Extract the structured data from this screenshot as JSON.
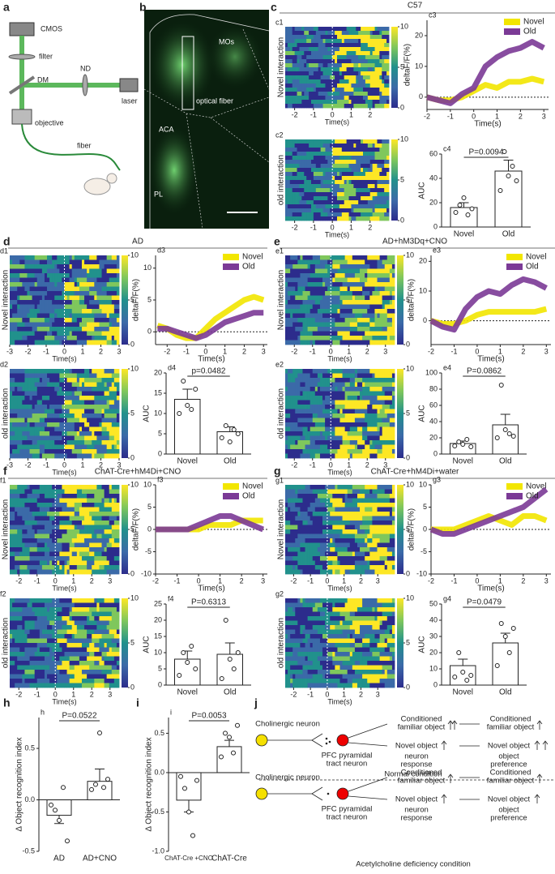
{
  "panel_letters": [
    "a",
    "b",
    "c",
    "d",
    "e",
    "f",
    "g",
    "h",
    "i",
    "j"
  ],
  "schematic": {
    "labels": [
      "CMOS",
      "filter",
      "DM",
      "ND",
      "laser",
      "objective",
      "fiber"
    ]
  },
  "micrograph": {
    "labels": [
      "MOs",
      "optical fiber",
      "ACA",
      "PL"
    ]
  },
  "sections": [
    "C57",
    "AD",
    "AD+hM3Dq+CNO",
    "ChAT-Cre+hM4Di+CNO",
    "ChAT-Cre+hM4Di+water"
  ],
  "heatmaps": [
    {
      "label": "c1",
      "ylabel": "Novel interaction",
      "xlabel": "Time(s)",
      "xlim": [
        -2.5,
        3
      ],
      "xticks": [
        -2,
        -1,
        0,
        1,
        2
      ],
      "clim": [
        0,
        10
      ],
      "cticks": [
        0,
        5,
        10
      ]
    },
    {
      "label": "c2",
      "ylabel": "old interaction",
      "xlabel": "Time(s)",
      "xlim": [
        -2.5,
        3
      ],
      "xticks": [
        -2,
        -1,
        0,
        1,
        2
      ],
      "clim": [
        0,
        10
      ],
      "cticks": [
        0,
        5,
        10
      ]
    },
    {
      "label": "d1",
      "ylabel": "Novel interaction",
      "xlabel": "Time(s)",
      "xlim": [
        -3,
        3
      ],
      "xticks": [
        -3,
        -2,
        -1,
        0,
        1,
        2,
        3
      ],
      "clim": [
        0,
        10
      ],
      "cticks": [
        0,
        5,
        10
      ]
    },
    {
      "label": "d2",
      "ylabel": "old interaction",
      "xlabel": "Time(s)",
      "xlim": [
        -3,
        3
      ],
      "xticks": [
        -3,
        -2,
        -1,
        0,
        1,
        2,
        3
      ],
      "clim": [
        0,
        10
      ],
      "cticks": [
        0,
        5,
        10
      ]
    },
    {
      "label": "e1",
      "ylabel": "Novel interaction",
      "xlabel": "Time(s)",
      "xlim": [
        -2.5,
        3.5
      ],
      "xticks": [
        -2,
        -1,
        0,
        1,
        2,
        3
      ],
      "clim": [
        0,
        10
      ],
      "cticks": [
        0,
        5,
        10
      ]
    },
    {
      "label": "e2",
      "ylabel": "old interaction",
      "xlabel": "Time(s)",
      "xlim": [
        -2.5,
        3.5
      ],
      "xticks": [
        -2,
        -1,
        0,
        1,
        2,
        3
      ],
      "clim": [
        0,
        10
      ],
      "cticks": [
        0,
        5,
        10
      ]
    },
    {
      "label": "f1",
      "ylabel": "Novel interaction",
      "xlabel": "Time(s)",
      "xlim": [
        -2.5,
        3.5
      ],
      "xticks": [
        -2,
        -1,
        0,
        1,
        2,
        3
      ],
      "clim": [
        0,
        10
      ],
      "cticks": [
        0,
        5,
        10
      ]
    },
    {
      "label": "f2",
      "ylabel": "old interaction",
      "xlabel": "Time(s)",
      "xlim": [
        -2.5,
        3.5
      ],
      "xticks": [
        -2,
        -1,
        0,
        1,
        2,
        3
      ],
      "clim": [
        0,
        10
      ],
      "cticks": [
        0,
        5,
        10
      ]
    },
    {
      "label": "g1",
      "ylabel": "Novel interaction",
      "xlabel": "Time(s)",
      "xlim": [
        -2.5,
        4
      ],
      "xticks": [
        -2,
        -1,
        0,
        1,
        2,
        3
      ],
      "clim": [
        0,
        10
      ],
      "cticks": [
        0,
        5,
        10
      ]
    },
    {
      "label": "g2",
      "ylabel": "old interaction",
      "xlabel": "Time(s)",
      "xlim": [
        -2.5,
        4
      ],
      "xticks": [
        -2,
        -1,
        0,
        1,
        2,
        3
      ],
      "clim": [
        0,
        10
      ],
      "cticks": [
        0,
        5,
        10
      ]
    }
  ],
  "chart_data": [
    {
      "type": "line",
      "label": "c3",
      "ylabel": "deltaF/F(%)",
      "xlabel": "Time(s)",
      "xlim": [
        -2,
        3.2
      ],
      "xticks": [
        -2,
        -1,
        0,
        1,
        2,
        3
      ],
      "ylim": [
        -4,
        25
      ],
      "yticks": [
        0,
        10,
        20
      ],
      "x": [
        -2,
        -1.5,
        -1,
        -0.5,
        0,
        0.5,
        1,
        1.5,
        2,
        2.5,
        3
      ],
      "series": [
        {
          "name": "Novel",
          "color": "#f2e600",
          "values": [
            0,
            -1,
            -1,
            0,
            2,
            4,
            3,
            5,
            5,
            6,
            5
          ]
        },
        {
          "name": "Old",
          "color": "#7b3a96",
          "values": [
            0,
            -1,
            -2,
            1,
            3,
            10,
            13,
            15,
            16,
            18,
            16
          ]
        }
      ]
    },
    {
      "type": "bar",
      "label": "c4",
      "ylabel": "AUC",
      "categories": [
        "Novel",
        "Old"
      ],
      "values": [
        16,
        46
      ],
      "errors": [
        4,
        9
      ],
      "points": [
        [
          12,
          18,
          24,
          10,
          15
        ],
        [
          30,
          62,
          42,
          50,
          38
        ]
      ],
      "ylim": [
        0,
        60
      ],
      "yticks": [
        0,
        20,
        40,
        60
      ],
      "annotation": "P=0.0094"
    },
    {
      "type": "line",
      "label": "d3",
      "ylabel": "deltaF/F(%)",
      "xlabel": "Time(s)",
      "xlim": [
        -2.6,
        3.2
      ],
      "xticks": [
        -2,
        -1,
        0,
        1,
        2,
        3
      ],
      "ylim": [
        -2,
        12
      ],
      "yticks": [
        0,
        5,
        10
      ],
      "x": [
        -2.5,
        -2,
        -1.5,
        -1,
        -0.5,
        0,
        0.5,
        1,
        1.5,
        2,
        2.5,
        3
      ],
      "series": [
        {
          "name": "Novel",
          "color": "#f2e600",
          "values": [
            1,
            0.5,
            -0.5,
            -1,
            -1,
            0.5,
            2,
            3,
            4,
            5,
            5.5,
            5
          ]
        },
        {
          "name": "Old",
          "color": "#7b3a96",
          "values": [
            0.5,
            0.5,
            0,
            -0.5,
            -1,
            -0.5,
            0.5,
            1.5,
            2,
            2.5,
            3,
            3
          ]
        }
      ]
    },
    {
      "type": "bar",
      "label": "d4",
      "ylabel": "AUC",
      "categories": [
        "Novel",
        "Old"
      ],
      "values": [
        13.5,
        5.5
      ],
      "errors": [
        2.5,
        1.2
      ],
      "points": [
        [
          10,
          18,
          12,
          11,
          16
        ],
        [
          4,
          7,
          3,
          6,
          5
        ]
      ],
      "ylim": [
        0,
        20
      ],
      "yticks": [
        0,
        5,
        10,
        15,
        20
      ],
      "annotation": "p=0.0482"
    },
    {
      "type": "line",
      "label": "e3",
      "ylabel": "deltaF/F(%)",
      "xlabel": "Time(s)",
      "xlim": [
        -2,
        3.2
      ],
      "xticks": [
        -2,
        -1,
        0,
        1,
        2,
        3
      ],
      "ylim": [
        -8,
        22
      ],
      "yticks": [
        0,
        10,
        20
      ],
      "x": [
        -2,
        -1.5,
        -1,
        -0.5,
        0,
        0.5,
        1,
        1.5,
        2,
        2.5,
        3
      ],
      "series": [
        {
          "name": "Novel",
          "color": "#f2e600",
          "values": [
            0,
            -1,
            -1,
            0,
            2,
            3,
            3,
            3,
            3,
            3,
            4
          ]
        },
        {
          "name": "Old",
          "color": "#7b3a96",
          "values": [
            0,
            -2,
            -3,
            4,
            8,
            10,
            9,
            12,
            14,
            13,
            11
          ]
        }
      ]
    },
    {
      "type": "bar",
      "label": "e4",
      "ylabel": "AUC",
      "categories": [
        "Novel",
        "Old"
      ],
      "values": [
        13,
        36
      ],
      "errors": [
        3,
        13
      ],
      "points": [
        [
          10,
          15,
          12,
          18,
          9
        ],
        [
          20,
          85,
          30,
          25,
          22
        ]
      ],
      "ylim": [
        0,
        100
      ],
      "yticks": [
        0,
        20,
        40,
        60,
        80,
        100
      ],
      "annotation": "P=0.0862"
    },
    {
      "type": "line",
      "label": "f3",
      "ylabel": "deltaF/F(%)",
      "xlabel": "Time(s)",
      "xlim": [
        -2,
        3.2
      ],
      "xticks": [
        -2,
        -1,
        0,
        1,
        2,
        3
      ],
      "ylim": [
        -10,
        10
      ],
      "yticks": [
        -10,
        -5,
        0,
        5,
        10
      ],
      "x": [
        -2,
        -1.5,
        -1,
        -0.5,
        0,
        0.5,
        1,
        1.5,
        2,
        2.5,
        3
      ],
      "series": [
        {
          "name": "Novel",
          "color": "#f2e600",
          "values": [
            0,
            0,
            0,
            0,
            0,
            1,
            1,
            1,
            2,
            2,
            2
          ]
        },
        {
          "name": "Old",
          "color": "#7b3a96",
          "values": [
            0,
            0,
            0,
            0,
            1,
            2,
            3,
            3,
            2,
            1,
            0
          ]
        }
      ]
    },
    {
      "type": "bar",
      "label": "f4",
      "ylabel": "AUC",
      "categories": [
        "Novel",
        "Old"
      ],
      "values": [
        8,
        9.5
      ],
      "errors": [
        2.5,
        3.5
      ],
      "points": [
        [
          3,
          10,
          7,
          12,
          5
        ],
        [
          2,
          20,
          8,
          5,
          10
        ]
      ],
      "ylim": [
        0,
        25
      ],
      "yticks": [
        0,
        5,
        10,
        15,
        20,
        25
      ],
      "annotation": "P=0.6313"
    },
    {
      "type": "line",
      "label": "g3",
      "ylabel": "deltaF/F(%)",
      "xlabel": "Time(s)",
      "xlim": [
        -2,
        3.2
      ],
      "xticks": [
        -2,
        -1,
        0,
        1,
        2,
        3
      ],
      "ylim": [
        -10,
        10
      ],
      "yticks": [
        -10,
        -5,
        0,
        5,
        10
      ],
      "x": [
        -2,
        -1.5,
        -1,
        -0.5,
        0,
        0.5,
        1,
        1.5,
        2,
        2.5,
        3
      ],
      "series": [
        {
          "name": "Novel",
          "color": "#f2e600",
          "values": [
            0,
            0,
            0,
            1,
            2,
            3,
            2,
            1,
            3,
            3,
            2
          ]
        },
        {
          "name": "Old",
          "color": "#7b3a96",
          "values": [
            0,
            -1,
            -1,
            0,
            1,
            2,
            3,
            4,
            5,
            7,
            9
          ]
        }
      ]
    },
    {
      "type": "bar",
      "label": "g4",
      "ylabel": "AUC",
      "categories": [
        "Novel",
        "Old"
      ],
      "values": [
        12,
        26
      ],
      "errors": [
        4,
        6
      ],
      "points": [
        [
          5,
          20,
          8,
          3,
          6
        ],
        [
          12,
          38,
          30,
          20,
          35
        ]
      ],
      "ylim": [
        0,
        50
      ],
      "yticks": [
        0,
        10,
        20,
        30,
        40,
        50
      ],
      "annotation": "P=0.0479"
    },
    {
      "type": "bar",
      "label": "h",
      "ylabel": "Δ Object recognition index",
      "categories": [
        "AD",
        "AD+CNO"
      ],
      "values": [
        -0.15,
        0.18
      ],
      "errors": [
        0.08,
        0.12
      ],
      "points": [
        [
          -0.05,
          -0.1,
          -0.2,
          0.12,
          -0.4
        ],
        [
          0.1,
          0.15,
          0.65,
          0.12,
          0.2
        ]
      ],
      "ylim": [
        -0.5,
        0.8
      ],
      "yticks": [
        -0.5,
        {
          "value": 0,
          "label": "0.0"
        },
        0.5
      ],
      "annotation": "P=0.0522"
    },
    {
      "type": "bar",
      "label": "i",
      "ylabel": "Δ Object recognition index",
      "categories": [
        "ChAT-Cre +CNO",
        "ChAT-Cre"
      ],
      "values": [
        -0.35,
        0.33
      ],
      "errors": [
        0.15,
        0.08
      ],
      "points": [
        [
          -0.05,
          -0.2,
          -0.5,
          -0.8,
          -0.1
        ],
        [
          0.2,
          0.5,
          0.45,
          0.25,
          0.6
        ]
      ],
      "ylim": [
        -1,
        0.7
      ],
      "yticks": [
        {
          "value": -1,
          "label": "-1.0"
        },
        -0.5,
        {
          "value": 0,
          "label": "0.0"
        },
        0.5
      ],
      "annotation": "P=0.0053"
    }
  ],
  "diagram": {
    "source": "Cholinergic neuron",
    "target": [
      "PFC pyramidal",
      "tract neuron"
    ],
    "familiar": [
      "Conditioned",
      "familiar object"
    ],
    "novel": "Novel object",
    "response": [
      "neuron",
      "response"
    ],
    "preference": [
      "object",
      "preference"
    ],
    "conditions": [
      "Normal condition",
      "Acetylcholine deficiency condition"
    ]
  }
}
